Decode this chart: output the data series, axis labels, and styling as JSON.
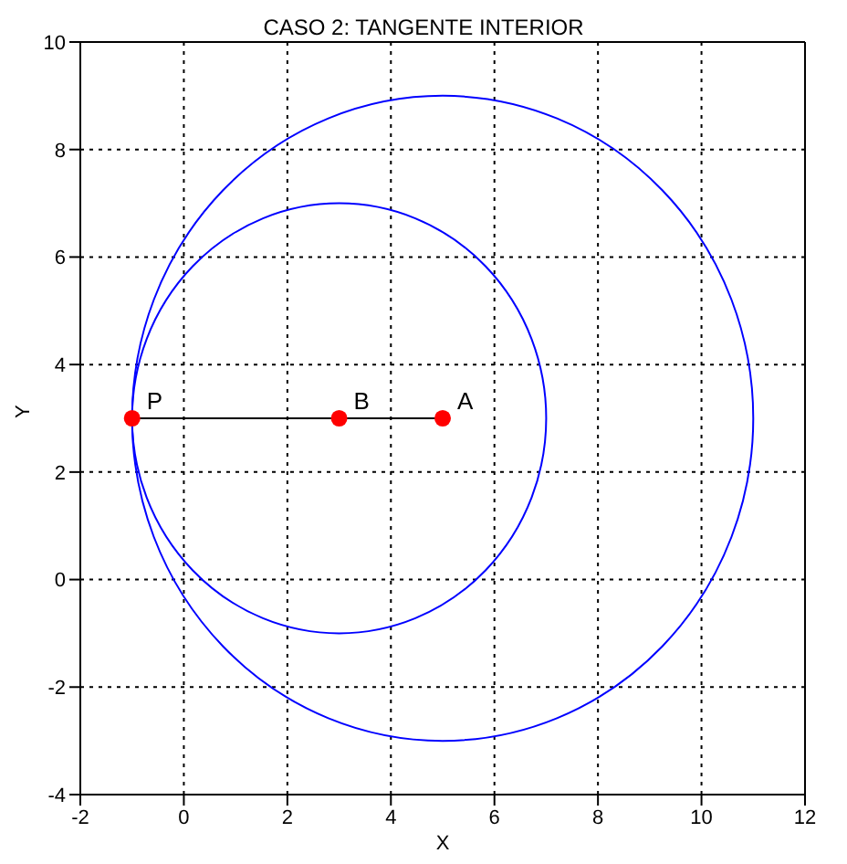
{
  "chart_data": {
    "type": "line",
    "title": "CASO 2: TANGENTE INTERIOR",
    "xlabel": "X",
    "ylabel": "Y",
    "xlim": [
      -2,
      12
    ],
    "xticks": [
      -2,
      0,
      2,
      4,
      6,
      8,
      10,
      12
    ],
    "ylim": [
      -4,
      10
    ],
    "yticks": [
      -4,
      -2,
      0,
      2,
      4,
      6,
      8,
      10
    ],
    "grid": true,
    "series": [
      {
        "type": "line",
        "color": "#000000",
        "line_style": "solid",
        "x": [
          -1,
          5
        ],
        "values": [
          3,
          3
        ]
      },
      {
        "type": "scatter",
        "color": "#ff0000",
        "marker": "circle",
        "x": [
          -1,
          3,
          5
        ],
        "values": [
          3,
          3,
          3
        ]
      }
    ],
    "annotations": [
      {
        "text": "P",
        "x": -1,
        "y": 3
      },
      {
        "text": "B",
        "x": 3,
        "y": 3
      },
      {
        "text": "A",
        "x": 5,
        "y": 3
      }
    ]
  }
}
